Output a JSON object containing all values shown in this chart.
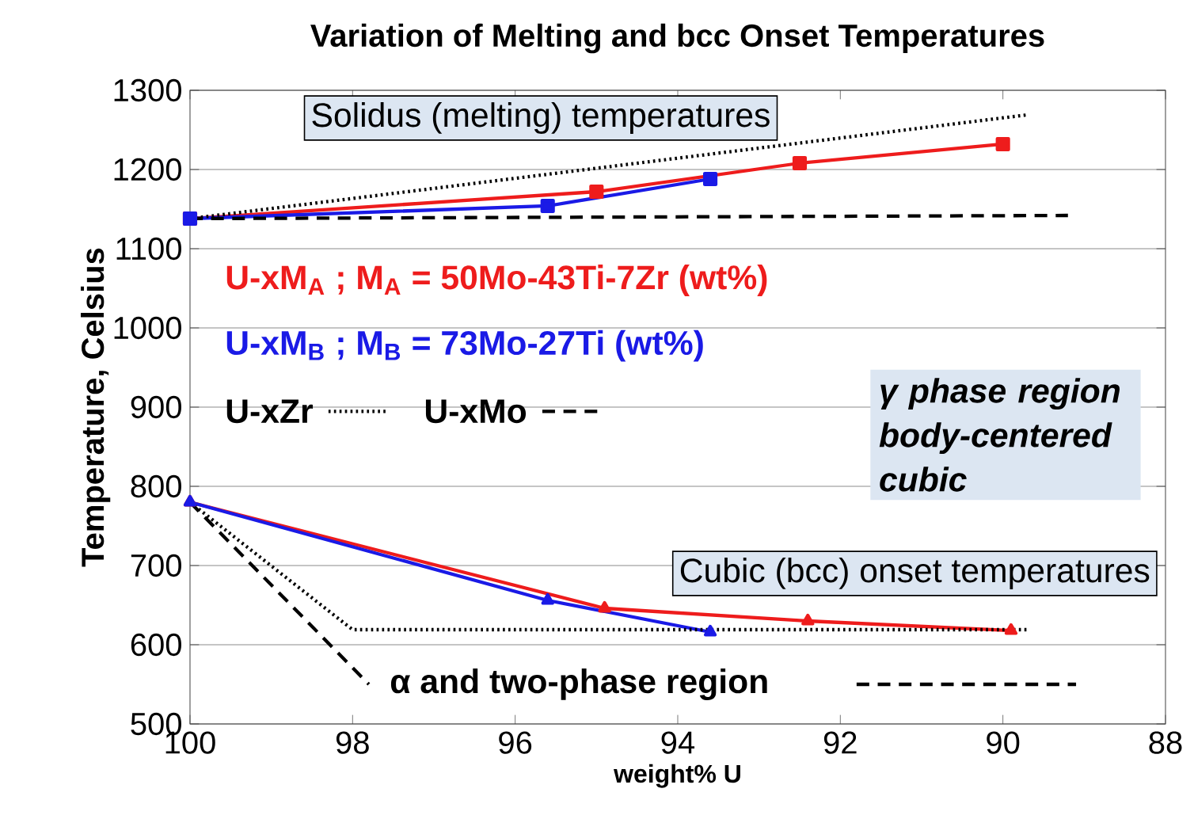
{
  "chart_data": {
    "type": "line",
    "title": "Variation of Melting and bcc Onset Temperatures",
    "xlabel": "weight% U",
    "ylabel": "Temperature, Celsius",
    "xlim": [
      100,
      88
    ],
    "xticks": [
      100,
      98,
      96,
      94,
      92,
      90,
      88
    ],
    "ylim": [
      500,
      1300
    ],
    "yticks": [
      500,
      600,
      700,
      800,
      900,
      1000,
      1100,
      1200,
      1300
    ],
    "grid": "y",
    "legend": "left",
    "series": [
      {
        "name": "U-xM$_{A}$ ; M$_{A}$ = 50Mo-43Ti-7Zr (wt%)",
        "color": "#ee1c1c",
        "marker": "square",
        "x": [
          100,
          95,
          92.5,
          90
        ],
        "values": [
          1138,
          1172,
          1208,
          1232
        ]
      },
      {
        "name": "U-xM$_{B}$ ;  M$_{B}$ = 73Mo-27Ti (wt%)",
        "color": "#1a1ae6",
        "marker": "square",
        "x": [
          100,
          95.6,
          93.6
        ],
        "values": [
          1138,
          1154,
          1188
        ]
      },
      {
        "name": "U-xZr",
        "color": "#000000",
        "marker": "none",
        "line_style": "dotted",
        "x": [
          100,
          89.7
        ],
        "values": [
          1138,
          1269
        ]
      },
      {
        "name": "U-xMo",
        "color": "#000000",
        "marker": "none",
        "line_style": "dashed",
        "x": [
          100,
          89.2
        ],
        "values": [
          1138,
          1142
        ]
      },
      {
        "color": "#ee1c1c",
        "marker": "triangle",
        "x": [
          100,
          94.9,
          92.4,
          89.9
        ],
        "values": [
          780,
          646,
          630,
          618
        ]
      },
      {
        "color": "#1a1ae6",
        "marker": "triangle",
        "x": [
          100,
          95.6,
          93.6
        ],
        "values": [
          780,
          656,
          616
        ]
      },
      {
        "color": "#000000",
        "marker": "none",
        "line_style": "dotted",
        "x": [
          100,
          98,
          89.7
        ],
        "values": [
          780,
          619,
          619
        ]
      },
      {
        "color": "#000000",
        "marker": "none",
        "line_style": "dashed",
        "x": [
          100,
          97.8,
          94.8,
          91.8,
          89.1
        ],
        "values": [
          780,
          550,
          null,
          550,
          550
        ]
      }
    ],
    "annotations": [
      "Solidus (melting) temperatures",
      "γ phase region body-centered cubic",
      "Cubic (bcc) onset temperatures",
      "α and two-phase region"
    ]
  }
}
